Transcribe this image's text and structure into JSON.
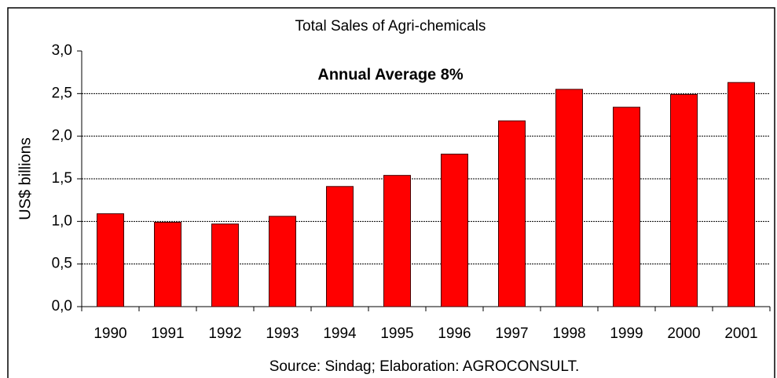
{
  "chart_data": {
    "type": "bar",
    "title": "Total Sales of Agri-chemicals",
    "annotation": "Annual Average 8%",
    "y_label": "US$ billions",
    "source": "Source: Sindag; Elaboration: AGROCONSULT.",
    "categories": [
      "1990",
      "1991",
      "1992",
      "1993",
      "1994",
      "1995",
      "1996",
      "1997",
      "1998",
      "1999",
      "2000",
      "2001"
    ],
    "values": [
      1.09,
      0.99,
      0.97,
      1.06,
      1.41,
      1.54,
      1.79,
      2.18,
      2.55,
      2.34,
      2.49,
      2.63
    ],
    "color": "#ff0000",
    "ylim": [
      0,
      3
    ],
    "yticks": [
      {
        "value": 0,
        "label": "0,0"
      },
      {
        "value": 0.5,
        "label": "0,5"
      },
      {
        "value": 1,
        "label": "1,0"
      },
      {
        "value": 1.5,
        "label": "1,5"
      },
      {
        "value": 2,
        "label": "2,0"
      },
      {
        "value": 2.5,
        "label": "2,5"
      },
      {
        "value": 3,
        "label": "3,0"
      }
    ],
    "grid": true
  }
}
